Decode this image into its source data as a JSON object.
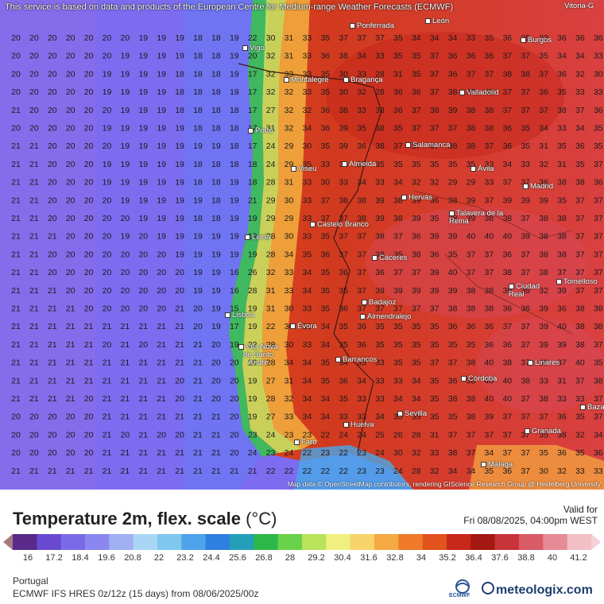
{
  "header": {
    "notice": "This service is based on data and products of the European Centre for Medium-range Weather Forecasts (ECMWF)"
  },
  "map": {
    "attribution": "Map data © OpenStreetMap contributors, rendering GIScience Research Group @ Heidelberg University",
    "cities": [
      "Vitoria-G",
      "Ponferrada",
      "León",
      "Burgos",
      "Vigo",
      "Montalegre",
      "Bragança",
      "Valladolid",
      "Porto",
      "Salamanca",
      "Viseu",
      "Almeida",
      "Ávila",
      "Madrid",
      "Hervás",
      "Castelo Branco",
      "Talavera de la Reina",
      "Leiria",
      "Cáceres",
      "Ciudad Real",
      "Tomelloso",
      "Badajoz",
      "Almendralejo",
      "Lisboa",
      "Évora",
      "Vila Nova de Santo André",
      "Barrancos",
      "Linares",
      "Córdoba",
      "Sevilla",
      "Baza",
      "Huelva",
      "Faro",
      "Granada",
      "Málaga"
    ],
    "grid_temperatures_c": [
      [
        20,
        20,
        20,
        20,
        20,
        20,
        20,
        19,
        19,
        19,
        18,
        18,
        19,
        22,
        30,
        31,
        33,
        35,
        37,
        37,
        37,
        35,
        34,
        34,
        34,
        33,
        35,
        36,
        35,
        33,
        36,
        36,
        36
      ],
      [
        20,
        20,
        20,
        20,
        20,
        20,
        19,
        19,
        19,
        19,
        18,
        18,
        19,
        20,
        32,
        31,
        33,
        36,
        38,
        34,
        33,
        35,
        35,
        37,
        36,
        36,
        36,
        37,
        37,
        35,
        34,
        34,
        33
      ],
      [
        20,
        20,
        20,
        20,
        20,
        19,
        19,
        19,
        19,
        18,
        18,
        18,
        19,
        17,
        32,
        33,
        33,
        35,
        30,
        33,
        28,
        31,
        35,
        37,
        36,
        37,
        37,
        38,
        38,
        37,
        36,
        32,
        30
      ],
      [
        20,
        20,
        20,
        20,
        20,
        19,
        19,
        19,
        19,
        18,
        18,
        18,
        19,
        17,
        32,
        32,
        33,
        35,
        30,
        32,
        28,
        36,
        36,
        37,
        38,
        38,
        38,
        37,
        37,
        36,
        35,
        33,
        33
      ],
      [
        21,
        20,
        20,
        20,
        20,
        20,
        19,
        19,
        19,
        18,
        18,
        18,
        18,
        17,
        27,
        32,
        32,
        36,
        38,
        33,
        38,
        36,
        37,
        38,
        39,
        38,
        38,
        37,
        37,
        37,
        38,
        37,
        36
      ],
      [
        20,
        20,
        20,
        20,
        20,
        19,
        19,
        19,
        19,
        19,
        18,
        18,
        18,
        17,
        31,
        32,
        34,
        36,
        39,
        35,
        38,
        35,
        37,
        37,
        37,
        38,
        38,
        36,
        35,
        34,
        33,
        34,
        35
      ],
      [
        21,
        21,
        20,
        20,
        20,
        20,
        19,
        19,
        19,
        19,
        19,
        19,
        18,
        17,
        24,
        29,
        30,
        35,
        39,
        36,
        38,
        37,
        37,
        37,
        38,
        38,
        37,
        36,
        35,
        31,
        35,
        36,
        35
      ],
      [
        21,
        21,
        20,
        20,
        20,
        19,
        19,
        19,
        19,
        19,
        18,
        18,
        18,
        18,
        24,
        29,
        35,
        33,
        35,
        35,
        35,
        35,
        35,
        35,
        35,
        35,
        33,
        34,
        33,
        32,
        31,
        35,
        37
      ],
      [
        21,
        21,
        20,
        20,
        20,
        19,
        19,
        19,
        19,
        19,
        18,
        18,
        19,
        18,
        28,
        31,
        33,
        30,
        33,
        34,
        33,
        34,
        32,
        32,
        29,
        29,
        33,
        37,
        37,
        36,
        38,
        38,
        36
      ],
      [
        21,
        21,
        20,
        20,
        20,
        20,
        19,
        19,
        19,
        19,
        19,
        18,
        19,
        21,
        29,
        30,
        33,
        37,
        38,
        38,
        39,
        38,
        39,
        36,
        38,
        39,
        37,
        39,
        39,
        39,
        35,
        37,
        37
      ],
      [
        21,
        21,
        20,
        20,
        20,
        20,
        20,
        19,
        19,
        19,
        18,
        18,
        19,
        19,
        29,
        29,
        33,
        37,
        37,
        38,
        39,
        38,
        39,
        35,
        38,
        39,
        38,
        38,
        37,
        38,
        38,
        37,
        37
      ],
      [
        21,
        21,
        21,
        20,
        20,
        20,
        19,
        20,
        19,
        19,
        19,
        19,
        19,
        19,
        28,
        30,
        33,
        35,
        37,
        37,
        38,
        37,
        36,
        39,
        39,
        40,
        40,
        40,
        39,
        38,
        38,
        37,
        37
      ],
      [
        21,
        21,
        20,
        20,
        20,
        20,
        20,
        20,
        20,
        19,
        19,
        19,
        19,
        19,
        28,
        34,
        35,
        36,
        37,
        37,
        38,
        35,
        38,
        36,
        35,
        37,
        37,
        36,
        37,
        38,
        38,
        37,
        37
      ],
      [
        21,
        21,
        20,
        20,
        20,
        20,
        20,
        20,
        20,
        20,
        19,
        19,
        16,
        26,
        32,
        33,
        34,
        35,
        36,
        37,
        36,
        37,
        37,
        39,
        40,
        37,
        37,
        38,
        37,
        38,
        37,
        37,
        37
      ],
      [
        21,
        21,
        21,
        20,
        20,
        20,
        20,
        20,
        20,
        20,
        19,
        19,
        16,
        28,
        31,
        33,
        34,
        35,
        35,
        37,
        39,
        39,
        39,
        39,
        39,
        38,
        38,
        39,
        38,
        32,
        39,
        37,
        37
      ],
      [
        21,
        21,
        21,
        21,
        20,
        20,
        20,
        20,
        20,
        21,
        20,
        19,
        15,
        19,
        31,
        30,
        33,
        35,
        36,
        37,
        37,
        37,
        37,
        37,
        38,
        38,
        38,
        36,
        36,
        39,
        36,
        38,
        38
      ],
      [
        21,
        21,
        21,
        21,
        21,
        21,
        21,
        21,
        21,
        21,
        20,
        19,
        17,
        19,
        22,
        30,
        33,
        34,
        35,
        36,
        35,
        35,
        35,
        35,
        36,
        36,
        36,
        37,
        37,
        39,
        40,
        38,
        38
      ],
      [
        21,
        21,
        21,
        21,
        21,
        20,
        21,
        20,
        21,
        21,
        21,
        20,
        19,
        22,
        28,
        30,
        33,
        34,
        35,
        36,
        35,
        35,
        35,
        35,
        35,
        35,
        36,
        36,
        37,
        39,
        39,
        38,
        37
      ],
      [
        21,
        21,
        21,
        21,
        21,
        21,
        21,
        21,
        21,
        21,
        21,
        20,
        20,
        20,
        28,
        34,
        34,
        35,
        34,
        33,
        33,
        35,
        35,
        37,
        37,
        38,
        40,
        38,
        37,
        39,
        37,
        40,
        35
      ],
      [
        21,
        21,
        21,
        21,
        21,
        21,
        21,
        21,
        21,
        20,
        21,
        20,
        20,
        19,
        27,
        31,
        34,
        35,
        36,
        34,
        33,
        33,
        34,
        35,
        36,
        38,
        40,
        40,
        38,
        33,
        31,
        37,
        38
      ],
      [
        21,
        21,
        21,
        21,
        20,
        21,
        21,
        21,
        21,
        20,
        21,
        20,
        20,
        19,
        28,
        32,
        34,
        34,
        35,
        33,
        33,
        34,
        34,
        35,
        38,
        38,
        40,
        40,
        37,
        38,
        33,
        33,
        37
      ],
      [
        20,
        20,
        20,
        20,
        20,
        21,
        21,
        21,
        21,
        21,
        21,
        21,
        20,
        19,
        27,
        33,
        34,
        34,
        33,
        33,
        34,
        35,
        35,
        35,
        35,
        38,
        39,
        37,
        37,
        37,
        36,
        35,
        37
      ],
      [
        20,
        20,
        20,
        20,
        20,
        21,
        20,
        21,
        20,
        20,
        21,
        21,
        20,
        23,
        24,
        23,
        23,
        22,
        24,
        24,
        25,
        26,
        28,
        31,
        37,
        37,
        37,
        37,
        37,
        35,
        38,
        32,
        34
      ],
      [
        20,
        20,
        20,
        20,
        20,
        21,
        21,
        21,
        21,
        21,
        21,
        21,
        20,
        24,
        23,
        24,
        22,
        23,
        22,
        23,
        24,
        30,
        32,
        33,
        38,
        37,
        34,
        37,
        37,
        35,
        36,
        35,
        36
      ],
      [
        21,
        21,
        21,
        21,
        21,
        21,
        21,
        21,
        21,
        21,
        21,
        21,
        21,
        21,
        22,
        22,
        22,
        22,
        22,
        23,
        23,
        24,
        28,
        32,
        34,
        34,
        35,
        36,
        37,
        30,
        32,
        33,
        33
      ]
    ]
  },
  "legend": {
    "title": "Temperature 2m, flex. scale",
    "unit": "(°C)",
    "valid_label": "Valid for",
    "valid_time": "Fri 08/08/2025, 04:00pm WEST",
    "ticks": [
      "16",
      "17.2",
      "18.4",
      "19.6",
      "20.8",
      "22",
      "23.2",
      "24.4",
      "25.6",
      "26.8",
      "28",
      "29.2",
      "30.4",
      "31.6",
      "32.8",
      "34",
      "35.2",
      "36.4",
      "37.6",
      "38.8",
      "40",
      "41.2"
    ],
    "colors": [
      "#5a2a8a",
      "#6a4ad0",
      "#7a6ae8",
      "#8a88f0",
      "#9fb0f2",
      "#a9d6f4",
      "#7fc7ef",
      "#4ea3ea",
      "#2f7fe0",
      "#23a0b8",
      "#2fb84a",
      "#6ad24a",
      "#b8e35a",
      "#f0f080",
      "#f7d36a",
      "#f4a942",
      "#ef7b2a",
      "#e2531e",
      "#c8281a",
      "#a41812",
      "#c8343a",
      "#d95b66",
      "#e68a96",
      "#f2bfc6"
    ],
    "region": "Portugal",
    "model": "ECMWF IFS HRES 0z/12z (15 days) from 08/06/2025/00z",
    "ecmwf_logo_text": "ECMWF",
    "brand": "meteologix.com"
  }
}
